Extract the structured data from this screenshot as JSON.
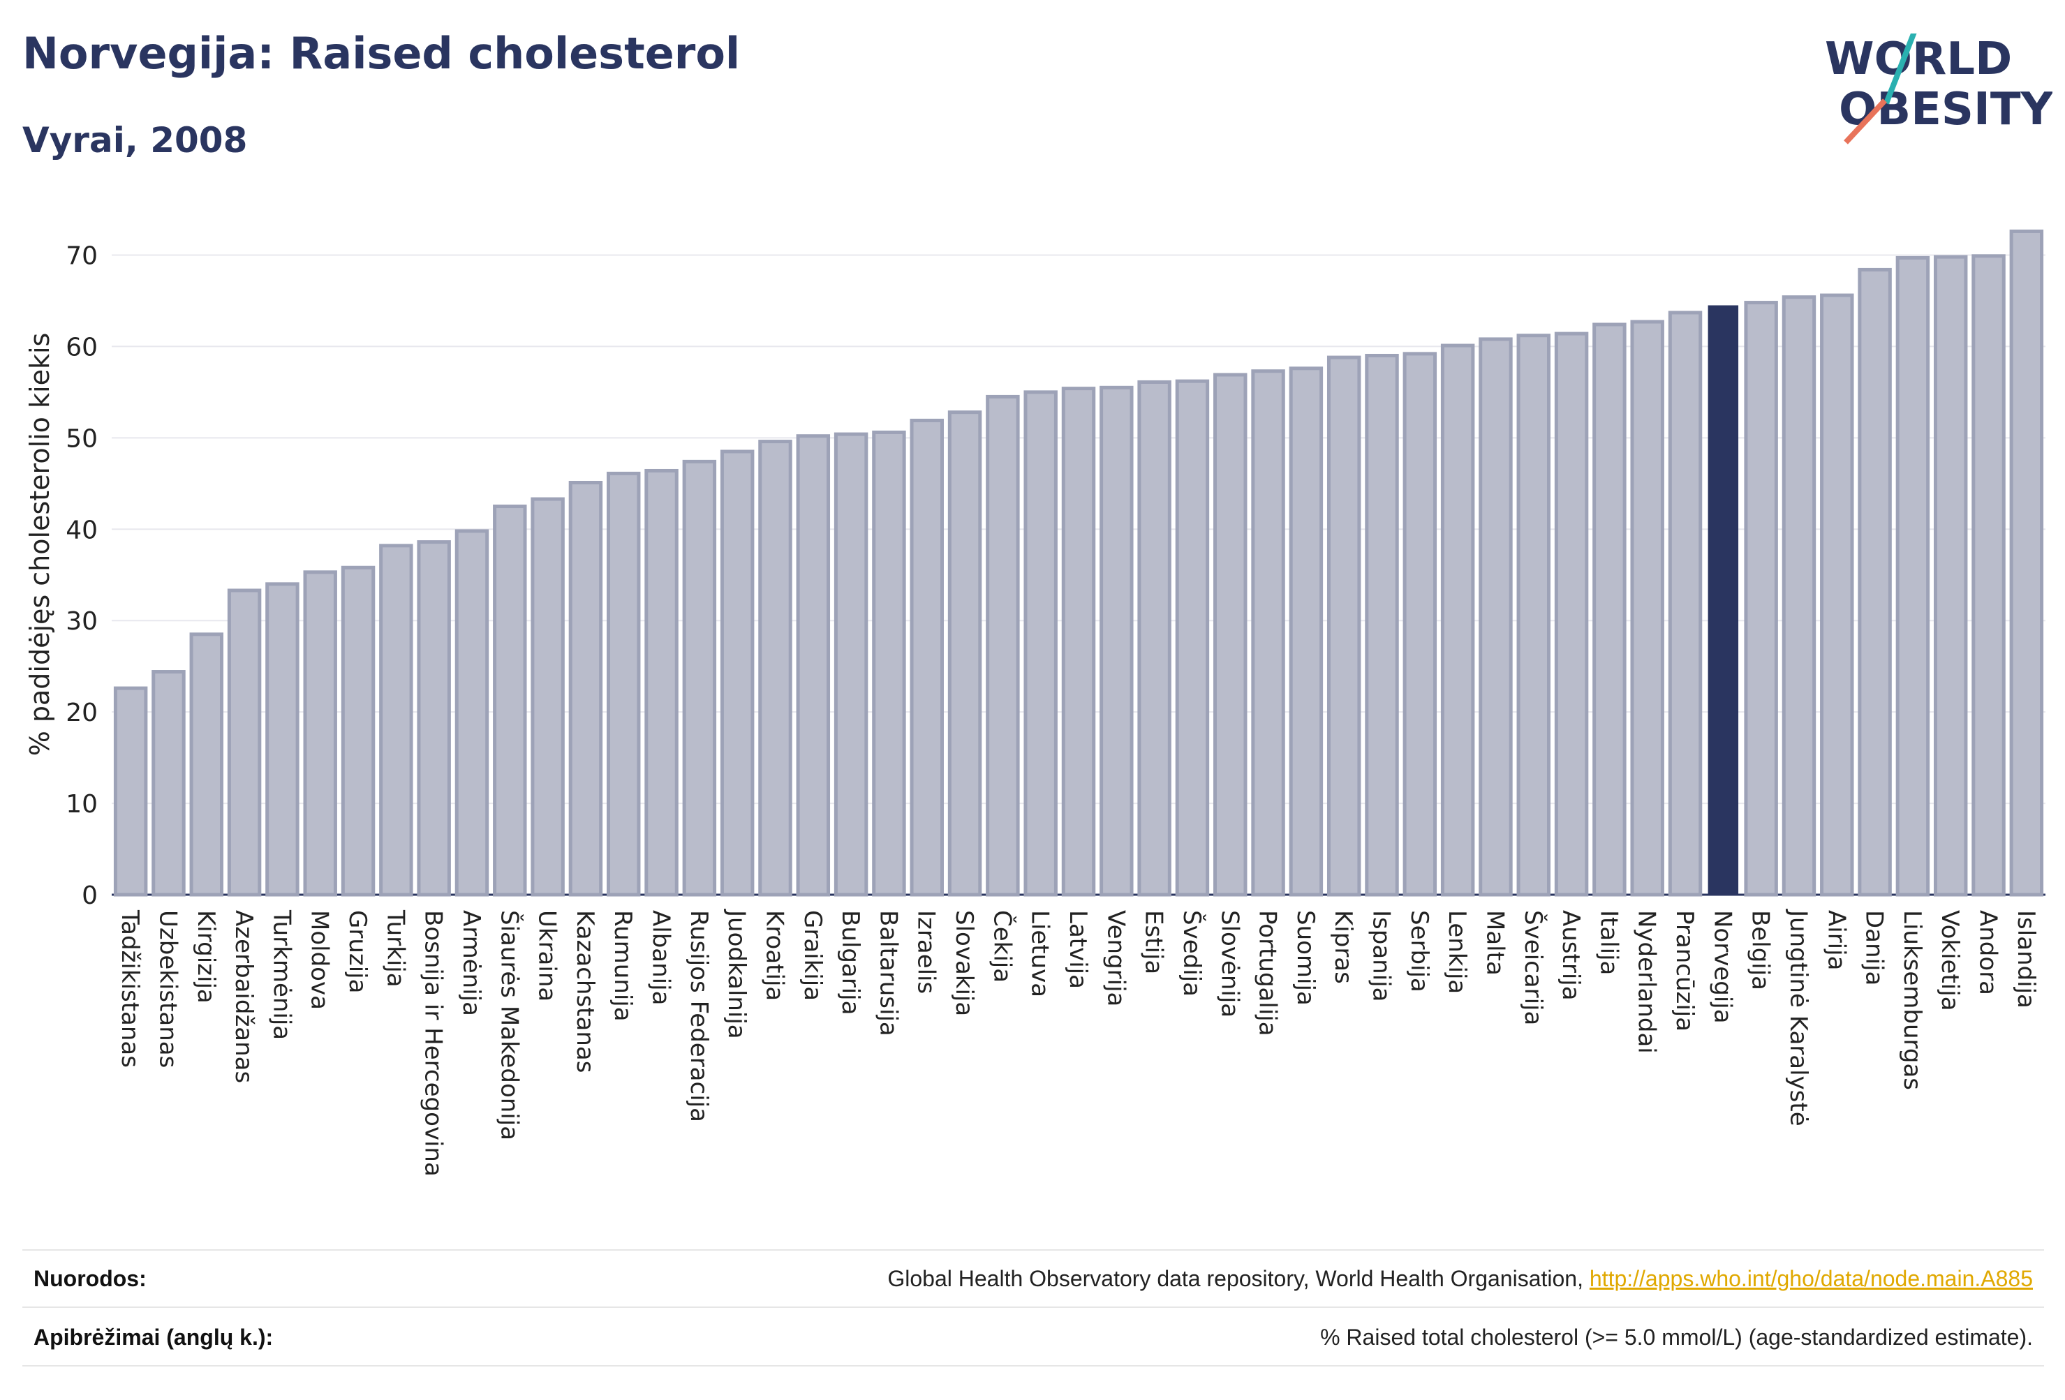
{
  "title": "Norvegija: Raised cholesterol",
  "subtitle": "Vyrai, 2008",
  "logo": {
    "line1": "WORLD",
    "line2": "OBESITY"
  },
  "colors": {
    "bar": "#b9bccb",
    "bar_stroke": "#9da2b7",
    "highlight": "#2a3560",
    "grid": "#e8e8ee",
    "text": "#2a3560",
    "link": "#e0a800"
  },
  "chart_data": {
    "type": "bar",
    "ylabel": "% padidėjęs cholesterolio kiekis",
    "ylim": [
      0,
      75
    ],
    "yticks": [
      0,
      10,
      20,
      30,
      40,
      50,
      60,
      70
    ],
    "highlight": "Norvegija",
    "categories": [
      "Tadžikistanas",
      "Uzbekistanas",
      "Kirgizija",
      "Azerbaidžanas",
      "Turkmėnija",
      "Moldova",
      "Gruzija",
      "Turkija",
      "Bosnija ir Hercegovina",
      "Armėnija",
      "Šiaurės Makedonija",
      "Ukraina",
      "Kazachstanas",
      "Rumunija",
      "Albanija",
      "Rusijos Federacija",
      "Juodkalnija",
      "Kroatija",
      "Graikija",
      "Bulgarija",
      "Baltarusija",
      "Izraelis",
      "Slovakija",
      "Čekija",
      "Lietuva",
      "Latvija",
      "Vengrija",
      "Estija",
      "Švedija",
      "Slovėnija",
      "Portugalija",
      "Suomija",
      "Kipras",
      "Ispanija",
      "Serbija",
      "Lenkija",
      "Malta",
      "Šveicarija",
      "Austrija",
      "Italija",
      "Nyderlandai",
      "Prancūzija",
      "Norvegija",
      "Belgija",
      "Jungtinė Karalystė",
      "Airija",
      "Danija",
      "Liuksemburgas",
      "Vokietija",
      "Andora",
      "Islandija"
    ],
    "values": [
      22.6,
      24.4,
      28.5,
      33.3,
      34.0,
      35.3,
      35.8,
      38.2,
      38.6,
      39.8,
      42.5,
      43.3,
      45.1,
      46.1,
      46.4,
      47.4,
      48.5,
      49.6,
      50.2,
      50.4,
      50.6,
      51.9,
      52.8,
      54.5,
      55.0,
      55.4,
      55.5,
      56.1,
      56.2,
      56.9,
      57.3,
      57.6,
      58.8,
      59.0,
      59.2,
      60.1,
      60.8,
      61.2,
      61.4,
      62.4,
      62.7,
      63.7,
      64.5,
      64.8,
      65.4,
      65.6,
      68.4,
      69.7,
      69.8,
      69.9,
      72.6
    ]
  },
  "footer": {
    "sources_label": "Nuorodos:",
    "sources_text": "Global Health Observatory data repository, World Health Organisation,",
    "sources_link": "http://apps.who.int/gho/data/node.main.A885",
    "definitions_label": "Apibrėžimai (anglų k.):",
    "definitions_text": "% Raised total cholesterol (>= 5.0 mmol/L) (age-standardized estimate)."
  }
}
